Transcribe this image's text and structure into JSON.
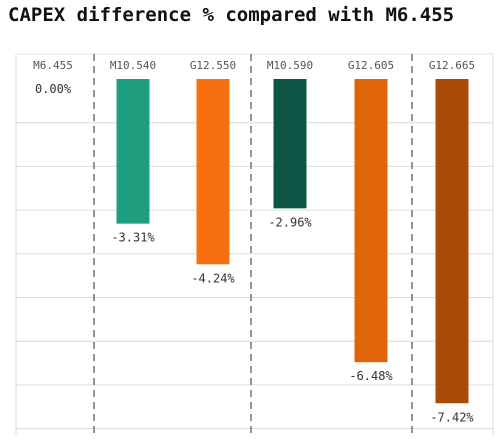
{
  "chart_data": {
    "type": "bar",
    "title": "CAPEX difference % compared with M6.455",
    "categories": [
      "M6.455",
      "M10.540",
      "G12.550",
      "M10.590",
      "G12.605",
      "G12.665"
    ],
    "values": [
      0.0,
      -3.31,
      -4.24,
      -2.96,
      -6.48,
      -7.42
    ],
    "value_labels": [
      "0.00%",
      "-3.31%",
      "-4.24%",
      "-2.96%",
      "-6.48%",
      "-7.42%"
    ],
    "colors": [
      "#1f9e7f",
      "#1f9e7f",
      "#f76f0e",
      "#0c5545",
      "#e06408",
      "#a84c05"
    ],
    "ylim": [
      -8,
      0
    ],
    "grid": true,
    "legend": "none",
    "xlabel": "",
    "ylabel": ""
  }
}
